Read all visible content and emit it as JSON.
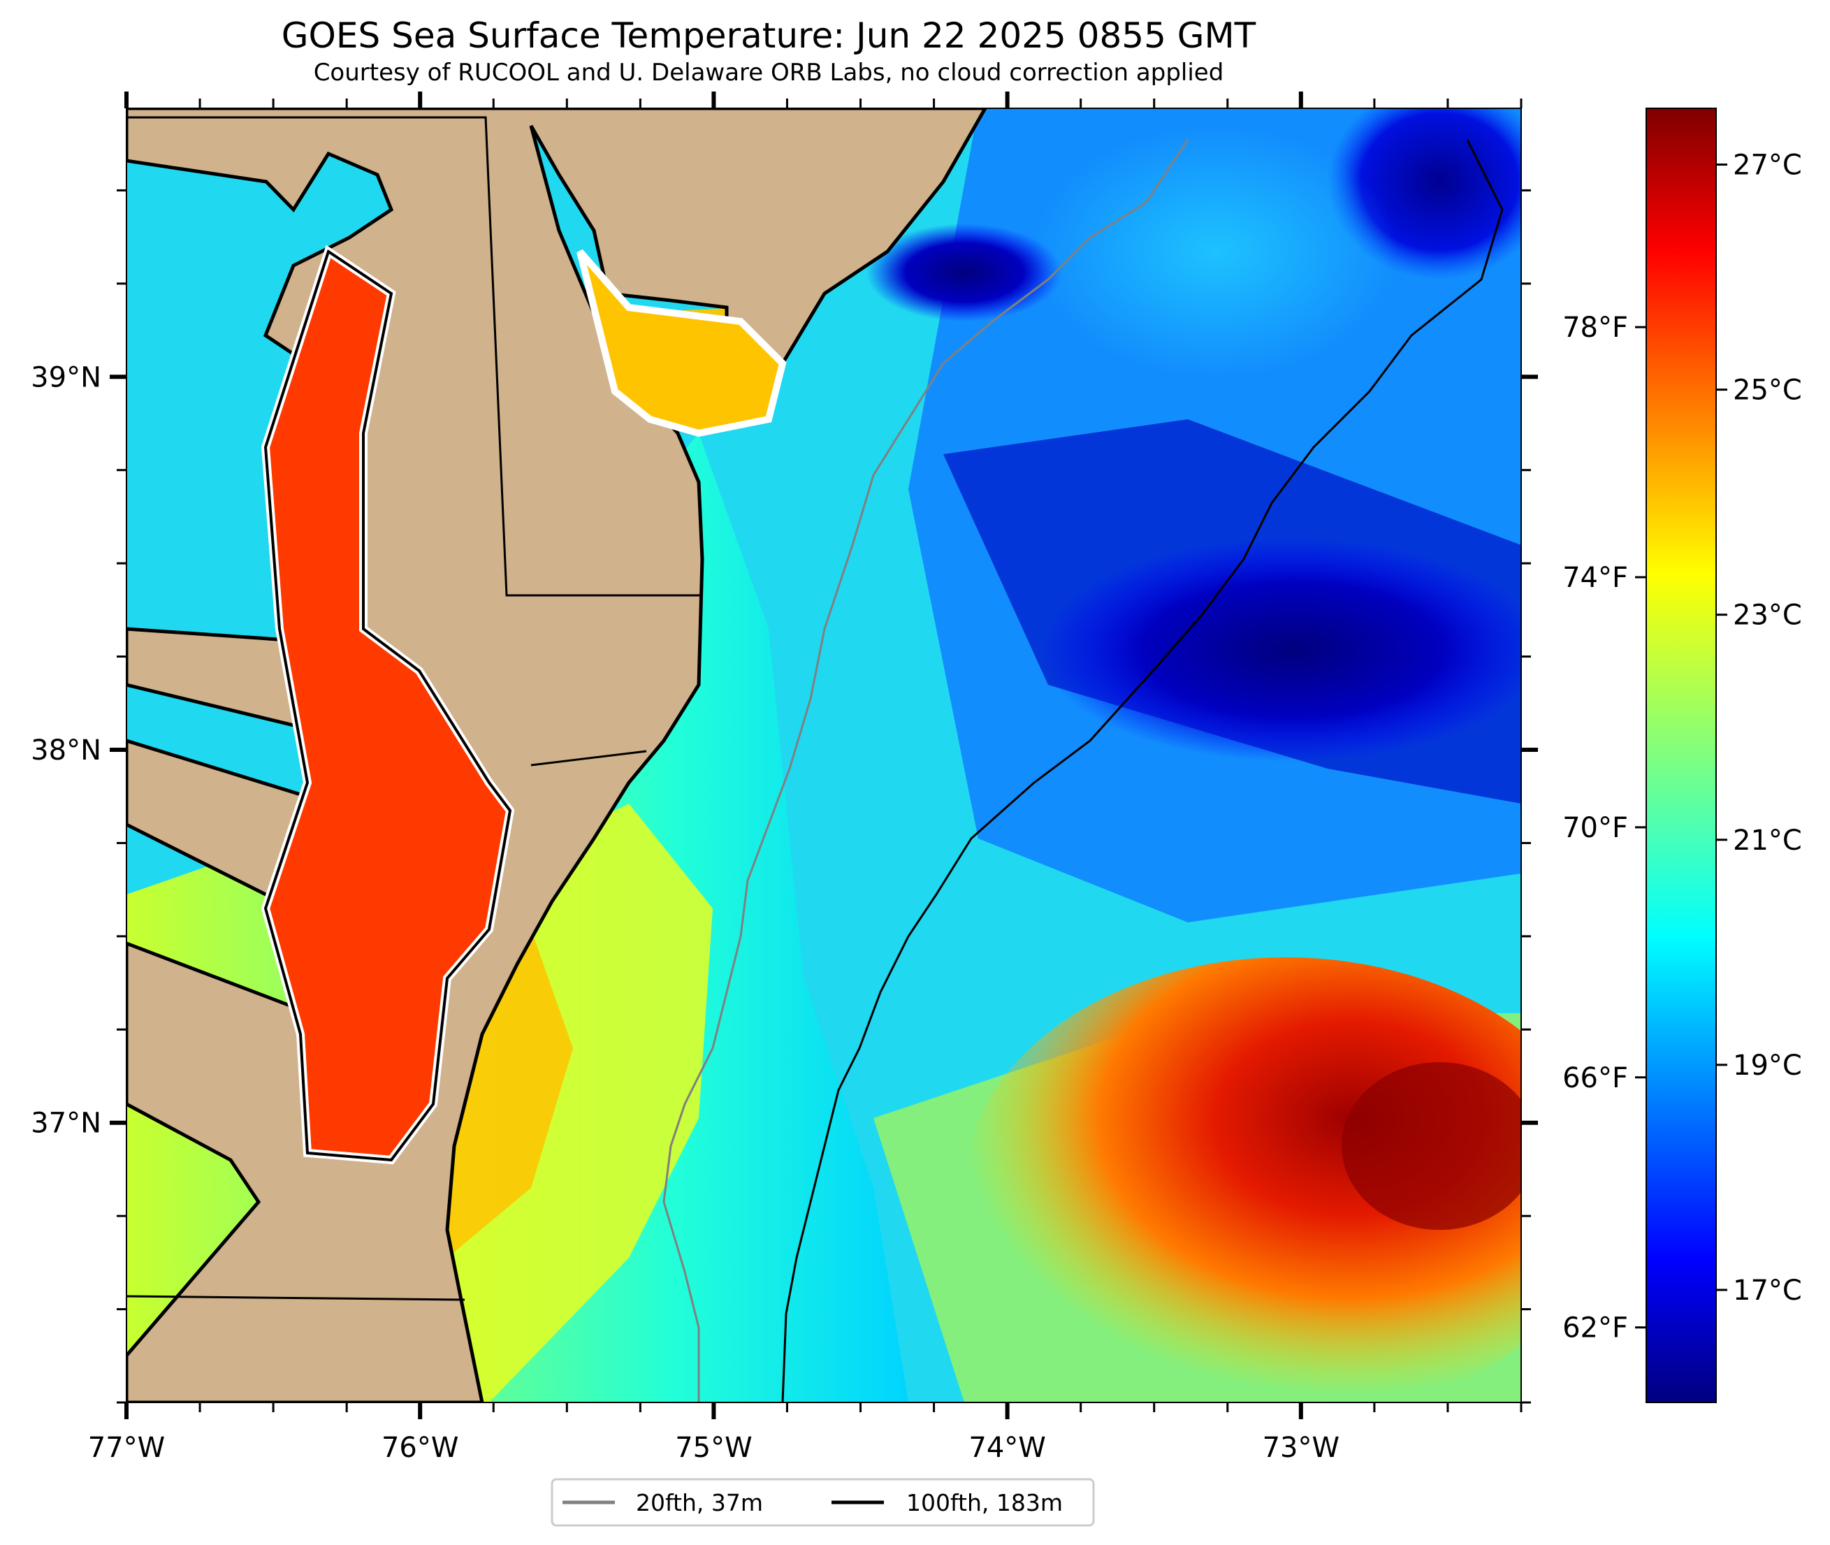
{
  "title": "GOES Sea Surface Temperature: Jun 22 2025 0855 GMT",
  "subtitle": "Courtesy of RUCOOL and U. Delaware ORB Labs, no cloud correction applied",
  "map": {
    "lon_range": [
      -77.0,
      -72.25
    ],
    "lat_range": [
      36.25,
      39.72
    ],
    "lon_ticks": [
      {
        "value": -77,
        "label": "77°W"
      },
      {
        "value": -76,
        "label": "76°W"
      },
      {
        "value": -75,
        "label": "75°W"
      },
      {
        "value": -74,
        "label": "74°W"
      },
      {
        "value": -73,
        "label": "73°W"
      }
    ],
    "lat_ticks": [
      {
        "value": 39,
        "label": "39°N"
      },
      {
        "value": 38,
        "label": "38°N"
      },
      {
        "value": 37,
        "label": "37°N"
      }
    ],
    "colors": {
      "land": "#d0b28c",
      "border": "#000000",
      "isobath_20": "#808080",
      "isobath_100": "#000000"
    }
  },
  "colorbar": {
    "range_c": [
      16.0,
      27.5
    ],
    "celsius_ticks": [
      {
        "value": 27,
        "label": "27°C"
      },
      {
        "value": 25,
        "label": "25°C"
      },
      {
        "value": 23,
        "label": "23°C"
      },
      {
        "value": 21,
        "label": "21°C"
      },
      {
        "value": 19,
        "label": "19°C"
      },
      {
        "value": 17,
        "label": "17°C"
      }
    ],
    "fahrenheit_ticks": [
      {
        "value": 78,
        "label": "78°F"
      },
      {
        "value": 74,
        "label": "74°F"
      },
      {
        "value": 70,
        "label": "70°F"
      },
      {
        "value": 66,
        "label": "66°F"
      },
      {
        "value": 62,
        "label": "62°F"
      }
    ],
    "colormap": "jet"
  },
  "legend": {
    "placement": "bottom-center",
    "items": [
      {
        "label": "20fth, 37m",
        "color": "#808080"
      },
      {
        "label": "100fth, 183m",
        "color": "#000000"
      }
    ]
  }
}
